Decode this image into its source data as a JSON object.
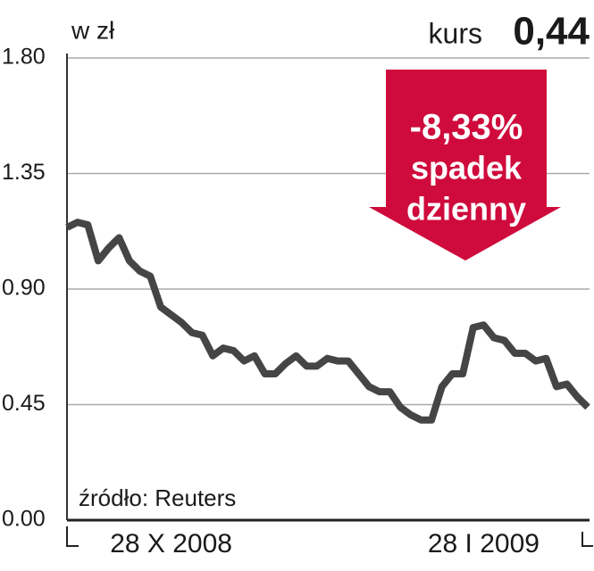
{
  "chart_data": {
    "type": "line",
    "title": "w zł",
    "price_label": "kurs",
    "price": "0,44",
    "callout": [
      "-8,33%",
      "spadek",
      "dzienny"
    ],
    "callout_color": "#cf0a3c",
    "source": "źródło: Reuters",
    "categories": [
      null,
      null,
      null,
      null,
      null,
      null,
      null,
      null,
      null,
      null,
      "28 X 2008",
      null,
      null,
      null,
      null,
      null,
      null,
      null,
      null,
      null,
      null,
      null,
      null,
      null,
      null,
      null,
      null,
      null,
      null,
      null,
      null,
      null,
      null,
      null,
      null,
      null,
      null,
      null,
      null,
      null,
      "28 I 2009",
      null,
      null,
      null,
      null,
      null,
      null,
      null,
      null,
      null,
      null
    ],
    "series": [
      {
        "name": "kurs",
        "color": "#454545",
        "values": [
          1.14,
          1.16,
          1.15,
          1.01,
          1.06,
          1.1,
          1.01,
          0.97,
          0.95,
          0.83,
          0.8,
          0.77,
          0.73,
          0.72,
          0.64,
          0.67,
          0.66,
          0.62,
          0.64,
          0.57,
          0.57,
          0.61,
          0.64,
          0.6,
          0.6,
          0.63,
          0.62,
          0.62,
          0.57,
          0.52,
          0.5,
          0.5,
          0.44,
          0.41,
          0.39,
          0.39,
          0.52,
          0.57,
          0.57,
          0.75,
          0.76,
          0.71,
          0.7,
          0.65,
          0.65,
          0.62,
          0.63,
          0.52,
          0.53,
          0.48,
          0.44
        ]
      }
    ],
    "ylim": [
      0,
      1.8
    ],
    "yticks": [
      {
        "value": 0,
        "label": "0.00"
      },
      {
        "value": 0.45,
        "label": "0.45"
      },
      {
        "value": 0.9,
        "label": "0.90"
      },
      {
        "value": 1.35,
        "label": "1.35"
      },
      {
        "value": 1.8,
        "label": "1.80"
      }
    ],
    "grid": true
  }
}
